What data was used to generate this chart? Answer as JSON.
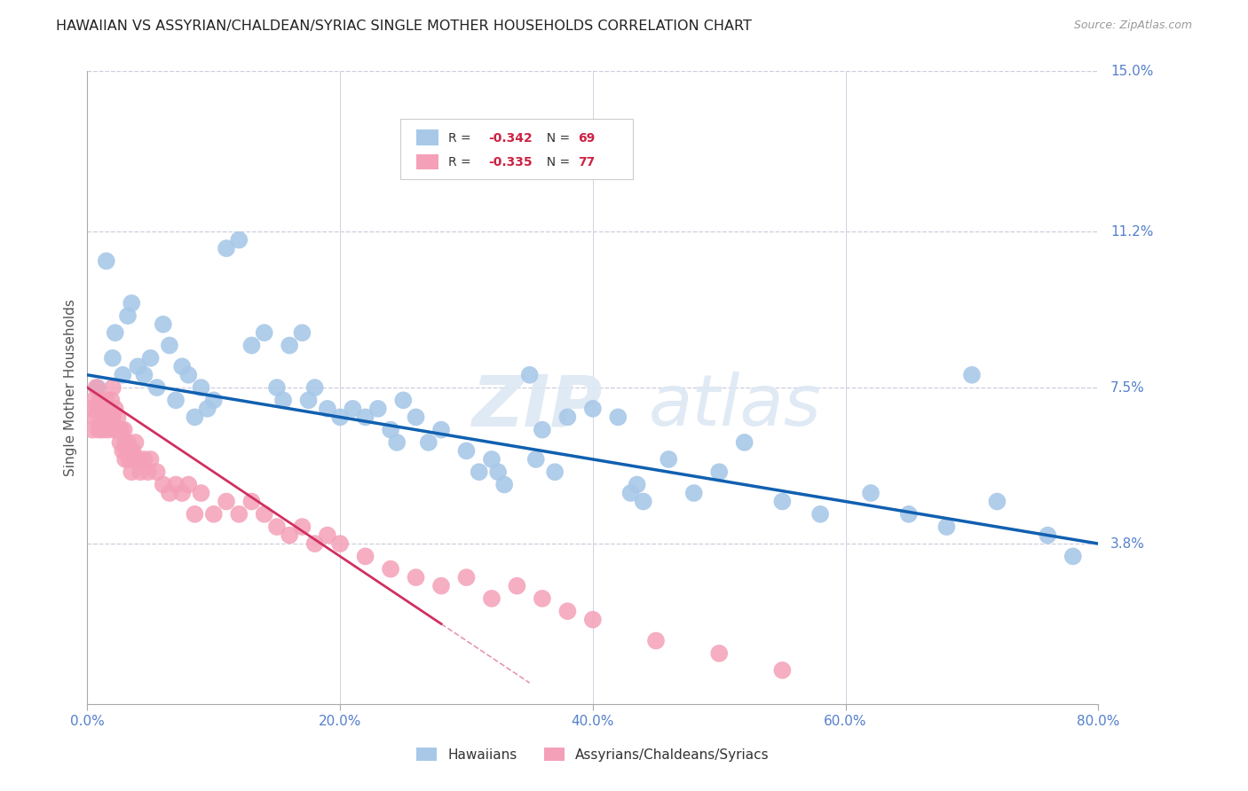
{
  "title": "HAWAIIAN VS ASSYRIAN/CHALDEAN/SYRIAC SINGLE MOTHER HOUSEHOLDS CORRELATION CHART",
  "source": "Source: ZipAtlas.com",
  "ylabel": "Single Mother Households",
  "xlim": [
    0.0,
    80.0
  ],
  "ylim": [
    0.0,
    15.0
  ],
  "yticks": [
    3.8,
    7.5,
    11.2,
    15.0
  ],
  "xticks": [
    0.0,
    20.0,
    40.0,
    60.0,
    80.0
  ],
  "legend_title_hawaiians": "Hawaiians",
  "legend_title_assyrians": "Assyrians/Chaldeans/Syriacs",
  "hawaiian_color": "#a8c8e8",
  "assyrian_color": "#f4a0b8",
  "trendline_blue": "#1060b0",
  "trendline_pink": "#d03060",
  "background_color": "#ffffff",
  "grid_color": "#ccccdd",
  "axis_label_color": "#5580cc",
  "title_color": "#222222",
  "watermark_color": "#dde8f4",
  "hawaiians_x": [
    0.8,
    1.5,
    2.0,
    2.2,
    2.8,
    3.2,
    3.5,
    4.0,
    4.5,
    5.0,
    5.5,
    6.0,
    6.5,
    7.0,
    7.5,
    8.0,
    8.5,
    9.0,
    9.5,
    10.0,
    11.0,
    12.0,
    13.0,
    14.0,
    15.0,
    15.5,
    16.0,
    17.0,
    18.0,
    19.0,
    20.0,
    21.0,
    22.0,
    23.0,
    24.0,
    25.0,
    26.0,
    27.0,
    28.0,
    30.0,
    31.0,
    32.0,
    33.0,
    35.0,
    36.0,
    37.0,
    38.0,
    40.0,
    42.0,
    43.0,
    44.0,
    46.0,
    48.0,
    50.0,
    52.0,
    55.0,
    58.0,
    62.0,
    65.0,
    68.0,
    70.0,
    72.0,
    76.0,
    78.0,
    32.5,
    17.5,
    43.5,
    24.5,
    35.5
  ],
  "hawaiians_y": [
    7.5,
    10.5,
    8.2,
    8.8,
    7.8,
    9.2,
    9.5,
    8.0,
    7.8,
    8.2,
    7.5,
    9.0,
    8.5,
    7.2,
    8.0,
    7.8,
    6.8,
    7.5,
    7.0,
    7.2,
    10.8,
    11.0,
    8.5,
    8.8,
    7.5,
    7.2,
    8.5,
    8.8,
    7.5,
    7.0,
    6.8,
    7.0,
    6.8,
    7.0,
    6.5,
    7.2,
    6.8,
    6.2,
    6.5,
    6.0,
    5.5,
    5.8,
    5.2,
    7.8,
    6.5,
    5.5,
    6.8,
    7.0,
    6.8,
    5.0,
    4.8,
    5.8,
    5.0,
    5.5,
    6.2,
    4.8,
    4.5,
    5.0,
    4.5,
    4.2,
    7.8,
    4.8,
    4.0,
    3.5,
    5.5,
    7.2,
    5.2,
    6.2,
    5.8
  ],
  "assyrians_x": [
    0.3,
    0.4,
    0.5,
    0.6,
    0.7,
    0.8,
    0.9,
    1.0,
    1.0,
    1.1,
    1.2,
    1.3,
    1.4,
    1.5,
    1.5,
    1.6,
    1.7,
    1.8,
    1.9,
    2.0,
    2.0,
    2.1,
    2.2,
    2.3,
    2.4,
    2.5,
    2.6,
    2.7,
    2.8,
    2.9,
    3.0,
    3.0,
    3.1,
    3.2,
    3.3,
    3.4,
    3.5,
    3.6,
    3.7,
    3.8,
    4.0,
    4.2,
    4.5,
    4.8,
    5.0,
    5.5,
    6.0,
    6.5,
    7.0,
    7.5,
    8.0,
    8.5,
    9.0,
    10.0,
    11.0,
    12.0,
    13.0,
    14.0,
    15.0,
    16.0,
    17.0,
    18.0,
    19.0,
    20.0,
    22.0,
    24.0,
    26.0,
    28.0,
    30.0,
    32.0,
    34.0,
    36.0,
    38.0,
    40.0,
    45.0,
    50.0,
    55.0
  ],
  "assyrians_y": [
    7.0,
    6.5,
    7.2,
    6.8,
    7.5,
    7.0,
    6.5,
    7.2,
    6.8,
    7.0,
    6.5,
    7.0,
    6.8,
    7.2,
    7.0,
    6.5,
    7.0,
    6.8,
    7.2,
    7.5,
    6.8,
    6.5,
    7.0,
    6.5,
    6.8,
    6.5,
    6.2,
    6.5,
    6.0,
    6.5,
    6.2,
    5.8,
    6.0,
    6.2,
    5.8,
    6.0,
    5.5,
    6.0,
    5.8,
    6.2,
    5.8,
    5.5,
    5.8,
    5.5,
    5.8,
    5.5,
    5.2,
    5.0,
    5.2,
    5.0,
    5.2,
    4.5,
    5.0,
    4.5,
    4.8,
    4.5,
    4.8,
    4.5,
    4.2,
    4.0,
    4.2,
    3.8,
    4.0,
    3.8,
    3.5,
    3.2,
    3.0,
    2.8,
    3.0,
    2.5,
    2.8,
    2.5,
    2.2,
    2.0,
    1.5,
    1.2,
    0.8
  ],
  "blue_trendline_x0": 0.0,
  "blue_trendline_y0": 7.8,
  "blue_trendline_x1": 80.0,
  "blue_trendline_y1": 3.8,
  "pink_trendline_x0": 0.0,
  "pink_trendline_y0": 7.5,
  "pink_trendline_x1": 35.0,
  "pink_trendline_y1": 0.5,
  "pink_solid_end": 28.0,
  "pink_dashed_end": 35.0
}
